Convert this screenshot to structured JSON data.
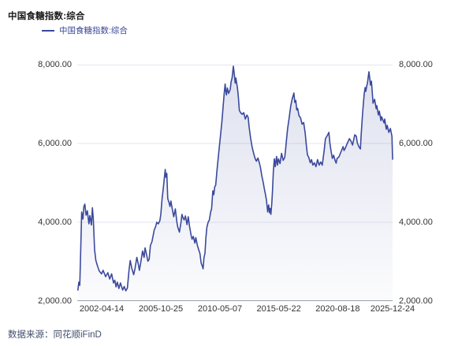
{
  "header": {
    "title": "中国食糖指数:综合"
  },
  "legend": {
    "items": [
      {
        "label": "中国食糖指数:综合",
        "color": "#3B499C"
      }
    ]
  },
  "footer": {
    "source_label": "数据来源：同花顺iFinD"
  },
  "colors": {
    "background": "#FFFFFF",
    "line": "#3B499C",
    "grid": "#E4E6F0",
    "axis": "#9AA0AA",
    "tick_text": "#333333",
    "title_text": "#1A1A1A",
    "legend_text": "#3A4795",
    "footer_text": "#434E6B"
  },
  "chart_data": {
    "type": "line",
    "title": "中国食糖指数:综合",
    "xlabel": "",
    "ylabel": "",
    "ylim": [
      2000,
      8000
    ],
    "grid": true,
    "area_fill": true,
    "legend_position": "top-left",
    "y_ticks": [
      {
        "label": "8,000.00",
        "value": 8000
      },
      {
        "label": "6,000.00",
        "value": 6000
      },
      {
        "label": "4,000.00",
        "value": 4000
      },
      {
        "label": "2,000.00",
        "value": 2000
      }
    ],
    "x_ticks": [
      {
        "label": "2002-04-14",
        "pct": 7.75
      },
      {
        "label": "2005-10-25",
        "pct": 26.5
      },
      {
        "label": "2010-05-07",
        "pct": 45.25
      },
      {
        "label": "2015-05-22",
        "pct": 63.9
      },
      {
        "label": "2020-08-18",
        "pct": 82.6
      },
      {
        "label": "2025-12-24",
        "pct": 100
      }
    ],
    "point_format": "[x_percent_along_time_axis, index_value]",
    "series": [
      {
        "name": "中国食糖指数:综合",
        "color": "#3B499C",
        "area_gradient": [
          "rgba(60,75,157,0.17)",
          "rgba(60,75,157,0.02)"
        ],
        "points": [
          [
            0.2,
            2280
          ],
          [
            0.5,
            2480
          ],
          [
            0.8,
            2400
          ],
          [
            1.1,
            3300
          ],
          [
            1.4,
            4260
          ],
          [
            1.8,
            4080
          ],
          [
            2.1,
            4400
          ],
          [
            2.4,
            4460
          ],
          [
            2.8,
            4180
          ],
          [
            3.2,
            4290
          ],
          [
            3.7,
            3960
          ],
          [
            4.0,
            4170
          ],
          [
            4.5,
            3930
          ],
          [
            4.8,
            4370
          ],
          [
            5.1,
            4070
          ],
          [
            5.5,
            3300
          ],
          [
            5.9,
            3030
          ],
          [
            6.5,
            2870
          ],
          [
            7.0,
            2760
          ],
          [
            7.7,
            2690
          ],
          [
            8.2,
            2780
          ],
          [
            9.0,
            2620
          ],
          [
            9.7,
            2720
          ],
          [
            10.3,
            2560
          ],
          [
            10.9,
            2690
          ],
          [
            11.5,
            2460
          ],
          [
            11.9,
            2530
          ],
          [
            12.3,
            2360
          ],
          [
            12.7,
            2480
          ],
          [
            13.2,
            2320
          ],
          [
            13.7,
            2460
          ],
          [
            14.4,
            2280
          ],
          [
            14.9,
            2370
          ],
          [
            15.4,
            2260
          ],
          [
            15.9,
            2330
          ],
          [
            16.4,
            2770
          ],
          [
            16.8,
            3030
          ],
          [
            17.3,
            2830
          ],
          [
            17.9,
            2670
          ],
          [
            18.3,
            2820
          ],
          [
            18.9,
            3110
          ],
          [
            19.4,
            2920
          ],
          [
            19.7,
            2780
          ],
          [
            20.2,
            3010
          ],
          [
            20.7,
            3270
          ],
          [
            21.2,
            3110
          ],
          [
            21.5,
            3350
          ],
          [
            21.9,
            3210
          ],
          [
            22.4,
            3010
          ],
          [
            22.8,
            3060
          ],
          [
            23.2,
            3410
          ],
          [
            23.7,
            3510
          ],
          [
            24.4,
            3800
          ],
          [
            24.9,
            3900
          ],
          [
            25.2,
            4000
          ],
          [
            25.7,
            3960
          ],
          [
            26.2,
            4040
          ],
          [
            26.5,
            4200
          ],
          [
            26.9,
            4600
          ],
          [
            27.2,
            4800
          ],
          [
            27.5,
            5030
          ],
          [
            27.9,
            5340
          ],
          [
            28.1,
            5140
          ],
          [
            28.4,
            5240
          ],
          [
            28.7,
            4600
          ],
          [
            29.1,
            4500
          ],
          [
            29.4,
            4400
          ],
          [
            29.7,
            4540
          ],
          [
            30.1,
            4350
          ],
          [
            30.6,
            4140
          ],
          [
            31.1,
            4340
          ],
          [
            31.6,
            4000
          ],
          [
            31.9,
            3870
          ],
          [
            32.4,
            3750
          ],
          [
            32.9,
            4000
          ],
          [
            33.2,
            4200
          ],
          [
            33.6,
            4100
          ],
          [
            33.9,
            4060
          ],
          [
            34.3,
            4160
          ],
          [
            34.8,
            3940
          ],
          [
            35.2,
            4140
          ],
          [
            35.6,
            3900
          ],
          [
            36.1,
            3670
          ],
          [
            36.4,
            3570
          ],
          [
            36.8,
            3640
          ],
          [
            37.3,
            3470
          ],
          [
            37.6,
            3610
          ],
          [
            38.1,
            3410
          ],
          [
            38.6,
            3280
          ],
          [
            38.9,
            3210
          ],
          [
            39.3,
            2960
          ],
          [
            39.7,
            2880
          ],
          [
            39.9,
            2820
          ],
          [
            40.2,
            3110
          ],
          [
            40.5,
            3210
          ],
          [
            40.8,
            3610
          ],
          [
            41.1,
            3870
          ],
          [
            41.5,
            4000
          ],
          [
            41.9,
            4060
          ],
          [
            42.3,
            4260
          ],
          [
            42.6,
            4340
          ],
          [
            43.0,
            4800
          ],
          [
            43.3,
            4700
          ],
          [
            43.6,
            4900
          ],
          [
            43.9,
            4940
          ],
          [
            44.4,
            5390
          ],
          [
            44.9,
            5790
          ],
          [
            45.4,
            6180
          ],
          [
            45.9,
            6580
          ],
          [
            46.3,
            6980
          ],
          [
            46.6,
            7270
          ],
          [
            46.9,
            7510
          ],
          [
            47.1,
            7330
          ],
          [
            47.3,
            7230
          ],
          [
            47.6,
            7410
          ],
          [
            48.0,
            7270
          ],
          [
            48.5,
            7370
          ],
          [
            48.8,
            7570
          ],
          [
            49.1,
            7660
          ],
          [
            49.5,
            7960
          ],
          [
            49.8,
            7760
          ],
          [
            50.1,
            7530
          ],
          [
            50.3,
            7660
          ],
          [
            50.8,
            7410
          ],
          [
            51.1,
            7170
          ],
          [
            51.4,
            6840
          ],
          [
            51.8,
            6780
          ],
          [
            52.3,
            6740
          ],
          [
            52.8,
            6780
          ],
          [
            53.3,
            6620
          ],
          [
            53.8,
            6720
          ],
          [
            54.2,
            6660
          ],
          [
            54.5,
            6420
          ],
          [
            55.0,
            6120
          ],
          [
            55.5,
            5890
          ],
          [
            56.0,
            5730
          ],
          [
            56.4,
            5620
          ],
          [
            56.8,
            5550
          ],
          [
            57.3,
            5630
          ],
          [
            57.8,
            5490
          ],
          [
            58.1,
            5390
          ],
          [
            58.5,
            5190
          ],
          [
            59.0,
            5000
          ],
          [
            59.3,
            4860
          ],
          [
            59.7,
            4700
          ],
          [
            60.0,
            4560
          ],
          [
            60.4,
            4260
          ],
          [
            60.7,
            4440
          ],
          [
            61.0,
            4240
          ],
          [
            61.2,
            4350
          ],
          [
            61.4,
            4200
          ],
          [
            61.7,
            4490
          ],
          [
            61.9,
            4770
          ],
          [
            62.2,
            5310
          ],
          [
            62.5,
            5610
          ],
          [
            62.8,
            5410
          ],
          [
            63.2,
            5670
          ],
          [
            63.5,
            5450
          ],
          [
            63.8,
            5610
          ],
          [
            64.3,
            5490
          ],
          [
            64.8,
            5750
          ],
          [
            65.3,
            5570
          ],
          [
            65.8,
            5650
          ],
          [
            66.0,
            5790
          ],
          [
            66.3,
            6050
          ],
          [
            66.7,
            6370
          ],
          [
            67.2,
            6650
          ],
          [
            67.7,
            6950
          ],
          [
            68.1,
            7110
          ],
          [
            68.7,
            7280
          ],
          [
            69.0,
            7040
          ],
          [
            69.3,
            7090
          ],
          [
            69.6,
            6850
          ],
          [
            69.9,
            6890
          ],
          [
            70.3,
            6710
          ],
          [
            70.8,
            6650
          ],
          [
            71.3,
            6490
          ],
          [
            71.8,
            6530
          ],
          [
            72.3,
            6250
          ],
          [
            72.6,
            5990
          ],
          [
            73.0,
            5710
          ],
          [
            73.4,
            5650
          ],
          [
            73.9,
            5510
          ],
          [
            74.3,
            5590
          ],
          [
            74.7,
            5450
          ],
          [
            75.2,
            5510
          ],
          [
            75.7,
            5410
          ],
          [
            76.2,
            5590
          ],
          [
            76.7,
            5450
          ],
          [
            77.2,
            5530
          ],
          [
            77.7,
            5450
          ],
          [
            78.3,
            5820
          ],
          [
            78.7,
            6120
          ],
          [
            79.3,
            6200
          ],
          [
            79.8,
            6280
          ],
          [
            80.1,
            6020
          ],
          [
            80.5,
            5800
          ],
          [
            80.9,
            5620
          ],
          [
            81.3,
            5700
          ],
          [
            81.8,
            5560
          ],
          [
            82.1,
            5500
          ],
          [
            82.4,
            5620
          ],
          [
            83.0,
            5660
          ],
          [
            83.5,
            5760
          ],
          [
            83.8,
            5820
          ],
          [
            84.3,
            5920
          ],
          [
            84.6,
            5820
          ],
          [
            85.0,
            5880
          ],
          [
            85.5,
            5980
          ],
          [
            86.3,
            6120
          ],
          [
            86.8,
            6060
          ],
          [
            87.3,
            5960
          ],
          [
            88.0,
            6220
          ],
          [
            88.5,
            6180
          ],
          [
            88.8,
            6020
          ],
          [
            89.3,
            5920
          ],
          [
            89.8,
            5860
          ],
          [
            90.0,
            6180
          ],
          [
            90.5,
            6780
          ],
          [
            91.0,
            7260
          ],
          [
            91.3,
            7420
          ],
          [
            91.5,
            7320
          ],
          [
            91.8,
            7460
          ],
          [
            92.0,
            7520
          ],
          [
            92.5,
            7820
          ],
          [
            92.8,
            7620
          ],
          [
            93.0,
            7480
          ],
          [
            93.3,
            7580
          ],
          [
            93.8,
            7020
          ],
          [
            94.3,
            7120
          ],
          [
            94.8,
            6880
          ],
          [
            95.0,
            6960
          ],
          [
            95.5,
            6720
          ],
          [
            95.8,
            6820
          ],
          [
            96.3,
            6580
          ],
          [
            96.5,
            6680
          ],
          [
            97.3,
            6520
          ],
          [
            97.5,
            6620
          ],
          [
            98.0,
            6360
          ],
          [
            98.3,
            6460
          ],
          [
            98.8,
            6280
          ],
          [
            99.3,
            6380
          ],
          [
            99.8,
            6180
          ],
          [
            100,
            5600
          ]
        ]
      }
    ]
  }
}
